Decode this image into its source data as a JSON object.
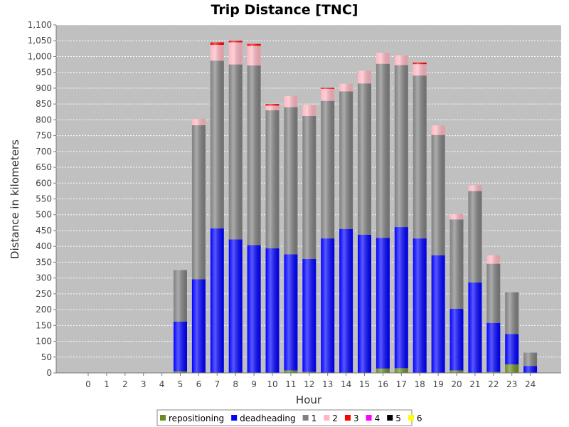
{
  "chart_data": {
    "type": "bar",
    "stacked": true,
    "title": "Trip Distance [TNC]",
    "xlabel": "Hour",
    "ylabel": "Distance in kilometers",
    "ylim": [
      0,
      1100
    ],
    "y_tick_step": 50,
    "grid": true,
    "legend_position": "bottom",
    "categories": [
      "0",
      "1",
      "2",
      "3",
      "4",
      "5",
      "6",
      "7",
      "8",
      "9",
      "10",
      "11",
      "12",
      "13",
      "14",
      "15",
      "16",
      "17",
      "18",
      "19",
      "20",
      "21",
      "22",
      "23",
      "24"
    ],
    "series": [
      {
        "name": "repositioning",
        "color": "#6b8e23",
        "values": [
          0,
          0,
          0,
          0,
          0,
          5,
          0,
          0,
          0,
          0,
          0,
          8,
          3,
          0,
          0,
          0,
          14,
          15,
          0,
          0,
          8,
          0,
          3,
          27,
          0
        ]
      },
      {
        "name": "deadheading",
        "color": "#0000ff",
        "values": [
          0,
          0,
          0,
          0,
          0,
          157,
          296,
          457,
          422,
          404,
          394,
          367,
          357,
          425,
          455,
          437,
          413,
          446,
          425,
          372,
          195,
          286,
          155,
          96,
          22
        ]
      },
      {
        "name": "1",
        "color": "#808080",
        "values": [
          0,
          0,
          0,
          0,
          0,
          163,
          487,
          530,
          553,
          568,
          436,
          465,
          452,
          435,
          435,
          478,
          550,
          512,
          515,
          380,
          282,
          289,
          187,
          132,
          42
        ]
      },
      {
        "name": "2",
        "color": "#ffb6c1",
        "values": [
          0,
          0,
          0,
          0,
          0,
          0,
          20,
          50,
          70,
          62,
          15,
          35,
          35,
          38,
          24,
          40,
          35,
          31,
          36,
          30,
          17,
          18,
          27,
          0,
          0
        ]
      },
      {
        "name": "3",
        "color": "#ff0000",
        "values": [
          0,
          0,
          0,
          0,
          0,
          0,
          0,
          8,
          5,
          6,
          5,
          0,
          0,
          3,
          0,
          0,
          0,
          0,
          5,
          0,
          0,
          0,
          0,
          0,
          0
        ]
      },
      {
        "name": "4",
        "color": "#ff00ff",
        "values": [
          0,
          0,
          0,
          0,
          0,
          0,
          0,
          0,
          0,
          0,
          0,
          0,
          0,
          0,
          0,
          0,
          0,
          0,
          0,
          0,
          0,
          0,
          0,
          0,
          0
        ]
      },
      {
        "name": "5",
        "color": "#000000",
        "values": [
          0,
          0,
          0,
          0,
          0,
          0,
          0,
          0,
          0,
          0,
          0,
          0,
          0,
          0,
          0,
          0,
          0,
          0,
          0,
          0,
          0,
          0,
          0,
          0,
          0
        ]
      },
      {
        "name": "6",
        "color": "#ffff00",
        "values": [
          0,
          0,
          0,
          0,
          0,
          0,
          0,
          0,
          0,
          0,
          0,
          0,
          0,
          0,
          0,
          0,
          0,
          0,
          0,
          0,
          0,
          0,
          0,
          0,
          0
        ]
      }
    ]
  }
}
